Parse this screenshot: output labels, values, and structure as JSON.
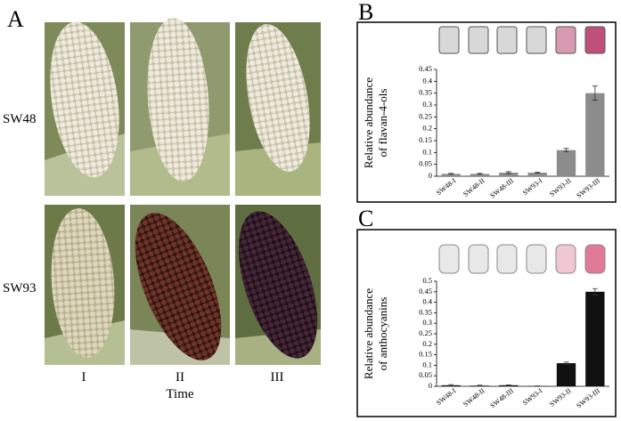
{
  "panel_a": {
    "label": "A",
    "rows": [
      "SW48",
      "SW93"
    ],
    "columns": [
      "I",
      "II",
      "III"
    ],
    "xlabel": "Time"
  },
  "chart_data": [
    {
      "type": "bar",
      "label": "B",
      "ylabel": [
        "Relative abundance",
        "of flavan-4-ols"
      ],
      "categories": [
        "SW48-I",
        "SW48-II",
        "SW48-III",
        "SW93-I",
        "SW93-II",
        "SW93-III"
      ],
      "values": [
        0.01,
        0.01,
        0.015,
        0.015,
        0.11,
        0.35
      ],
      "errors": [
        0.002,
        0.002,
        0.004,
        0.002,
        0.007,
        0.03
      ],
      "color": "#8c8c8c",
      "ylim": [
        0,
        0.45
      ],
      "yticks": [
        0,
        0.05,
        0.1,
        0.15,
        0.2,
        0.25,
        0.3,
        0.35,
        0.4,
        0.45
      ]
    },
    {
      "type": "bar",
      "label": "C",
      "ylabel": [
        "Relative abundance",
        "of anthocyanins"
      ],
      "categories": [
        "SW48-I",
        "SW48-II",
        "SW48-III",
        "SW93-I",
        "SW93-II",
        "SW93-III"
      ],
      "values": [
        0.005,
        0.003,
        0.005,
        0.001,
        0.11,
        0.45
      ],
      "errors": [
        0.003,
        0.002,
        0.002,
        0.001,
        0.005,
        0.015
      ],
      "color": "#111111",
      "ylim": [
        0,
        0.5
      ],
      "yticks": [
        0,
        0.05,
        0.1,
        0.15,
        0.2,
        0.25,
        0.3,
        0.35,
        0.4,
        0.45,
        0.5
      ]
    }
  ]
}
